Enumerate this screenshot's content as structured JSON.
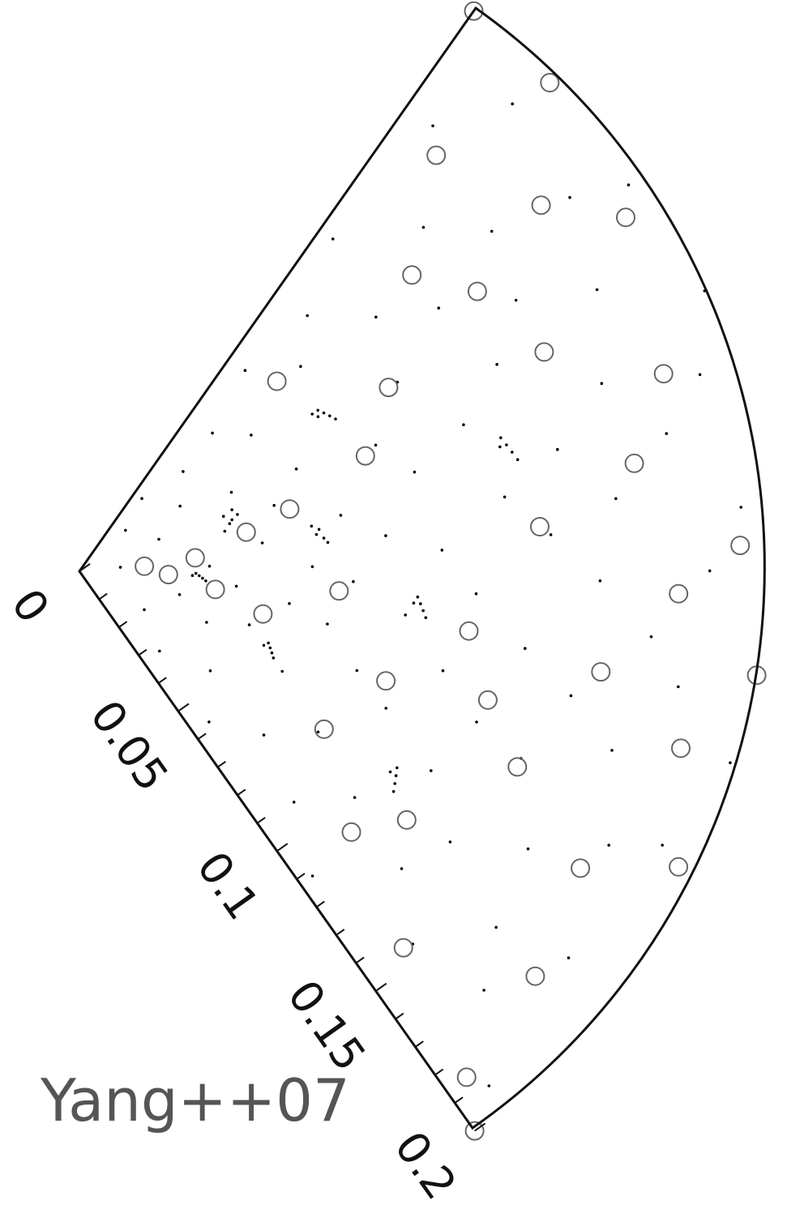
{
  "chart_data": {
    "type": "scatter",
    "subtype": "redshift-cone (wedge) plot",
    "title": "",
    "xlabel": "",
    "ylabel": "",
    "radial_axis": {
      "ticks": [
        0,
        0.05,
        0.1,
        0.15,
        0.2
      ],
      "tick_labels": [
        "0",
        "0.05",
        "0.1",
        "0.15",
        "0.2"
      ],
      "range": [
        0,
        0.2
      ],
      "minor_tick_step": 0.01
    },
    "annotation": "Yang++07",
    "series": [
      {
        "marker": "dot",
        "color": "#000000",
        "points": [
          [
            0.012,
            0.45
          ],
          [
            0.018,
            0.12
          ],
          [
            0.022,
            0.78
          ],
          [
            0.025,
            0.3
          ],
          [
            0.028,
            0.05
          ],
          [
            0.03,
            0.62
          ],
          [
            0.033,
            0.91
          ],
          [
            0.035,
            0.2
          ],
          [
            0.038,
            0.48
          ],
          [
            0.04,
            0.7
          ],
          [
            0.042,
            0.1
          ],
          [
            0.044,
            0.36
          ],
          [
            0.046,
            0.55
          ],
          [
            0.048,
            0.84
          ],
          [
            0.05,
            0.25
          ],
          [
            0.052,
            0.66
          ],
          [
            0.054,
            0.42
          ],
          [
            0.056,
            0.08
          ],
          [
            0.058,
            0.95
          ],
          [
            0.06,
            0.33
          ],
          [
            0.062,
            0.58
          ],
          [
            0.064,
            0.15
          ],
          [
            0.066,
            0.74
          ],
          [
            0.068,
            0.49
          ],
          [
            0.07,
            0.27
          ],
          [
            0.072,
            0.88
          ],
          [
            0.074,
            0.61
          ],
          [
            0.076,
            0.04
          ],
          [
            0.078,
            0.39
          ],
          [
            0.08,
            0.52
          ],
          [
            0.082,
            0.19
          ],
          [
            0.084,
            0.81
          ],
          [
            0.086,
            0.68
          ],
          [
            0.088,
            0.11
          ],
          [
            0.09,
            0.44
          ],
          [
            0.092,
            0.93
          ],
          [
            0.094,
            0.29
          ],
          [
            0.096,
            0.57
          ],
          [
            0.098,
            0.72
          ],
          [
            0.1,
            0.06
          ],
          [
            0.102,
            0.35
          ],
          [
            0.104,
            0.86
          ],
          [
            0.106,
            0.47
          ],
          [
            0.108,
            0.22
          ],
          [
            0.11,
            0.64
          ],
          [
            0.112,
            0.98
          ],
          [
            0.114,
            0.13
          ],
          [
            0.116,
            0.53
          ],
          [
            0.118,
            0.77
          ],
          [
            0.12,
            0.31
          ],
          [
            0.122,
            0.02
          ],
          [
            0.124,
            0.69
          ],
          [
            0.126,
            0.41
          ],
          [
            0.128,
            0.89
          ],
          [
            0.13,
            0.17
          ],
          [
            0.132,
            0.59
          ],
          [
            0.134,
            0.83
          ],
          [
            0.136,
            0.26
          ],
          [
            0.138,
            0.46
          ],
          [
            0.14,
            0.71
          ],
          [
            0.142,
            0.09
          ],
          [
            0.144,
            0.37
          ],
          [
            0.146,
            0.94
          ],
          [
            0.148,
            0.63
          ],
          [
            0.15,
            0.21
          ],
          [
            0.152,
            0.51
          ],
          [
            0.154,
            0.79
          ],
          [
            0.156,
            0.14
          ],
          [
            0.158,
            0.43
          ],
          [
            0.16,
            0.87
          ],
          [
            0.162,
            0.32
          ],
          [
            0.164,
            0.67
          ],
          [
            0.166,
            0.03
          ],
          [
            0.168,
            0.56
          ],
          [
            0.17,
            0.92
          ],
          [
            0.172,
            0.24
          ],
          [
            0.174,
            0.75
          ],
          [
            0.176,
            0.38
          ],
          [
            0.178,
            0.6
          ],
          [
            0.18,
            0.16
          ],
          [
            0.182,
            0.85
          ],
          [
            0.184,
            0.5
          ],
          [
            0.186,
            0.07
          ],
          [
            0.188,
            0.73
          ],
          [
            0.19,
            0.34
          ],
          [
            0.192,
            0.97
          ],
          [
            0.194,
            0.45
          ],
          [
            0.196,
            0.18
          ],
          [
            0.198,
            0.65
          ],
          [
            0.2,
            0.28
          ],
          [
            0.045,
            0.31
          ],
          [
            0.047,
            0.33
          ],
          [
            0.049,
            0.32
          ],
          [
            0.046,
            0.34
          ],
          [
            0.048,
            0.3
          ],
          [
            0.07,
            0.42
          ],
          [
            0.072,
            0.43
          ],
          [
            0.071,
            0.41
          ],
          [
            0.073,
            0.44
          ],
          [
            0.069,
            0.4
          ],
          [
            0.1,
            0.55
          ],
          [
            0.101,
            0.56
          ],
          [
            0.099,
            0.54
          ],
          [
            0.102,
            0.57
          ],
          [
            0.098,
            0.55
          ],
          [
            0.06,
            0.7
          ],
          [
            0.061,
            0.71
          ],
          [
            0.059,
            0.69
          ],
          [
            0.062,
            0.72
          ],
          [
            0.058,
            0.7
          ],
          [
            0.085,
            0.2
          ],
          [
            0.086,
            0.21
          ],
          [
            0.084,
            0.19
          ],
          [
            0.087,
            0.22
          ],
          [
            0.083,
            0.2
          ],
          [
            0.13,
            0.35
          ],
          [
            0.131,
            0.36
          ],
          [
            0.129,
            0.34
          ],
          [
            0.132,
            0.37
          ],
          [
            0.128,
            0.35
          ],
          [
            0.035,
            0.52
          ],
          [
            0.036,
            0.53
          ],
          [
            0.034,
            0.51
          ],
          [
            0.037,
            0.54
          ],
          [
            0.033,
            0.52
          ],
          [
            0.11,
            0.8
          ],
          [
            0.111,
            0.81
          ],
          [
            0.109,
            0.79
          ],
          [
            0.112,
            0.82
          ],
          [
            0.108,
            0.8
          ]
        ]
      },
      {
        "marker": "open-circle",
        "color": "#666666",
        "points": [
          [
            0.019,
            0.46
          ],
          [
            0.026,
            0.52
          ],
          [
            0.034,
            0.44
          ],
          [
            0.04,
            0.57
          ],
          [
            0.05,
            0.38
          ],
          [
            0.055,
            0.62
          ],
          [
            0.064,
            0.35
          ],
          [
            0.076,
            0.54
          ],
          [
            0.09,
            0.3
          ],
          [
            0.095,
            0.68
          ],
          [
            0.105,
            0.22
          ],
          [
            0.115,
            0.58
          ],
          [
            0.12,
            0.84
          ],
          [
            0.13,
            0.12
          ],
          [
            0.135,
            0.45
          ],
          [
            0.14,
            0.72
          ],
          [
            0.145,
            0.95
          ],
          [
            0.15,
            0.27
          ],
          [
            0.155,
            0.6
          ],
          [
            0.16,
            0.05
          ],
          [
            0.165,
            0.4
          ],
          [
            0.17,
            0.78
          ],
          [
            0.172,
            0.15
          ],
          [
            0.175,
            0.52
          ],
          [
            0.178,
            0.88
          ],
          [
            0.18,
            0.33
          ],
          [
            0.183,
            0.65
          ],
          [
            0.186,
            0.98
          ],
          [
            0.19,
            0.2
          ],
          [
            0.193,
            0.48
          ],
          [
            0.195,
            0.74
          ],
          [
            0.198,
            0.08
          ],
          [
            0.2,
            0.58
          ],
          [
            0.2,
            0.0
          ],
          [
            0.2,
            1.0
          ],
          [
            0.08,
            0.1
          ],
          [
            0.085,
            0.8
          ],
          [
            0.11,
            0.9
          ],
          [
            0.125,
            0.66
          ],
          [
            0.142,
            0.18
          ]
        ]
      }
    ]
  }
}
